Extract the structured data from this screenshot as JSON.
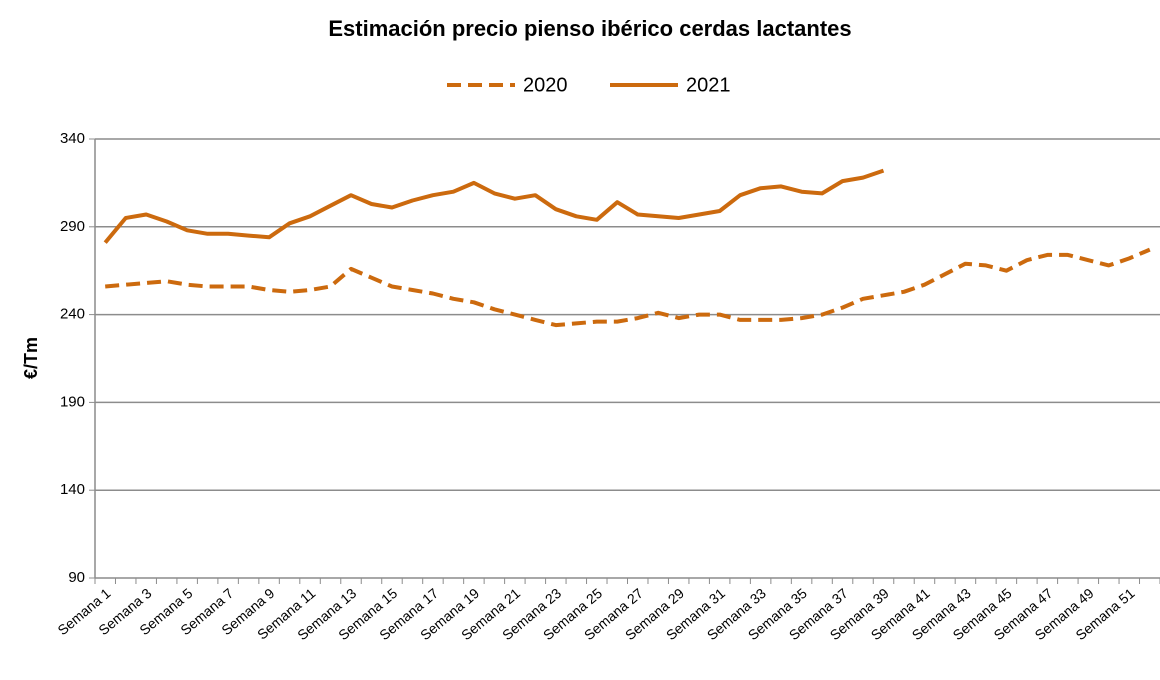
{
  "chart_data": {
    "type": "line",
    "title": "Estimación precio pienso ibérico cerdas lactantes",
    "y_label": "€/Tm",
    "categories": [
      "Semana 1",
      null,
      "Semana 3",
      null,
      "Semana 5",
      null,
      "Semana 7",
      null,
      "Semana 9",
      null,
      "Semana 11",
      null,
      "Semana 13",
      null,
      "Semana 15",
      null,
      "Semana 17",
      null,
      "Semana 19",
      null,
      "Semana 21",
      null,
      "Semana 23",
      null,
      "Semana 25",
      null,
      "Semana 27",
      null,
      "Semana 29",
      null,
      "Semana 31",
      null,
      "Semana 33",
      null,
      "Semana 35",
      null,
      "Semana 37",
      null,
      "Semana 39",
      null,
      "Semana 41",
      null,
      "Semana 43",
      null,
      "Semana 45",
      null,
      "Semana 47",
      null,
      "Semana 49",
      null,
      "Semana 51",
      null
    ],
    "series": [
      {
        "name": "2020",
        "color": "#cc6a0e",
        "dashed": true,
        "values": [
          256,
          257,
          258,
          259,
          257,
          256,
          256,
          256,
          254,
          253,
          254,
          256,
          266,
          261,
          256,
          254,
          252,
          249,
          247,
          243,
          240,
          237,
          234,
          235,
          236,
          236,
          238,
          241,
          238,
          240,
          240,
          237,
          237,
          237,
          238,
          240,
          244,
          249,
          251,
          253,
          257,
          263,
          269,
          268,
          265,
          271,
          274,
          274,
          271,
          268,
          272,
          277
        ]
      },
      {
        "name": "2021",
        "color": "#cc6a0e",
        "dashed": false,
        "values": [
          281,
          295,
          297,
          293,
          288,
          286,
          286,
          285,
          284,
          292,
          296,
          302,
          308,
          303,
          301,
          305,
          308,
          310,
          315,
          309,
          306,
          308,
          300,
          296,
          294,
          304,
          297,
          296,
          295,
          297,
          299,
          308,
          312,
          313,
          310,
          309,
          316,
          318,
          322,
          null,
          null,
          null,
          null,
          null,
          null,
          null,
          null,
          null,
          null,
          null,
          null,
          null
        ]
      }
    ],
    "ylim": [
      90,
      340
    ],
    "yticks": [
      90,
      140,
      190,
      240,
      290,
      340
    ],
    "grid": true,
    "legend": "top"
  }
}
